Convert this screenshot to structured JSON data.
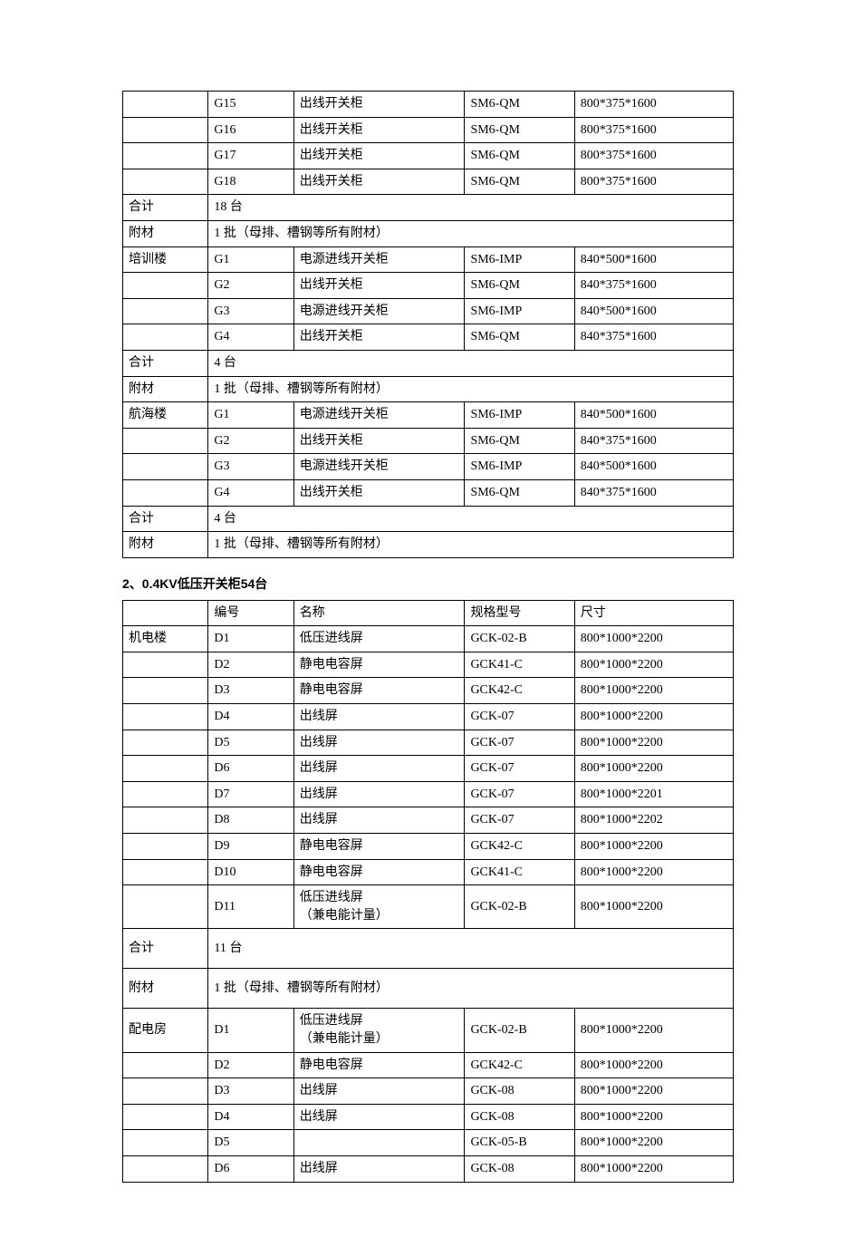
{
  "table1": {
    "rows": [
      {
        "c1": "",
        "c2": "G15",
        "c3": "出线开关柜",
        "c4": "SM6-QM",
        "c5": "800*375*1600"
      },
      {
        "c1": "",
        "c2": "G16",
        "c3": "出线开关柜",
        "c4": "SM6-QM",
        "c5": "800*375*1600"
      },
      {
        "c1": "",
        "c2": "G17",
        "c3": "出线开关柜",
        "c4": "SM6-QM",
        "c5": "800*375*1600"
      },
      {
        "c1": "",
        "c2": "G18",
        "c3": "出线开关柜",
        "c4": "SM6-QM",
        "c5": "800*375*1600"
      },
      {
        "c1": "合计",
        "merge": "18 台"
      },
      {
        "c1": "附材",
        "merge": "1 批（母排、槽钢等所有附材）"
      },
      {
        "c1": "培训楼",
        "c2": "G1",
        "c3": "电源进线开关柜",
        "c4": "SM6-IMP",
        "c5": "840*500*1600"
      },
      {
        "c1": "",
        "c2": "G2",
        "c3": "出线开关柜",
        "c4": "SM6-QM",
        "c5": "840*375*1600"
      },
      {
        "c1": "",
        "c2": "G3",
        "c3": "电源进线开关柜",
        "c4": "SM6-IMP",
        "c5": "840*500*1600"
      },
      {
        "c1": "",
        "c2": "G4",
        "c3": "出线开关柜",
        "c4": "SM6-QM",
        "c5": "840*375*1600"
      },
      {
        "c1": "合计",
        "merge": "4 台"
      },
      {
        "c1": "附材",
        "merge": "1 批（母排、槽钢等所有附材）"
      },
      {
        "c1": "航海楼",
        "c2": "G1",
        "c3": "电源进线开关柜",
        "c4": "SM6-IMP",
        "c5": "840*500*1600"
      },
      {
        "c1": "",
        "c2": "G2",
        "c3": "出线开关柜",
        "c4": "SM6-QM",
        "c5": "840*375*1600"
      },
      {
        "c1": "",
        "c2": "G3",
        "c3": "电源进线开关柜",
        "c4": "SM6-IMP",
        "c5": "840*500*1600"
      },
      {
        "c1": "",
        "c2": "G4",
        "c3": "出线开关柜",
        "c4": "SM6-QM",
        "c5": "840*375*1600"
      },
      {
        "c1": "合计",
        "merge": "4 台"
      },
      {
        "c1": "附材",
        "merge": "1 批（母排、槽钢等所有附材）"
      }
    ]
  },
  "section2_heading": "2、0.4KV低压开关柜54台",
  "table2": {
    "rows": [
      {
        "c1": "",
        "c2": "编号",
        "c3": "名称",
        "c4": "规格型号",
        "c5": "尺寸"
      },
      {
        "c1": "机电楼",
        "c2": "D1",
        "c3": "低压进线屏",
        "c4": "GCK-02-B",
        "c5": "800*1000*2200"
      },
      {
        "c1": "",
        "c2": "D2",
        "c3": "静电电容屏",
        "c4": "GCK41-C",
        "c5": "800*1000*2200"
      },
      {
        "c1": "",
        "c2": "D3",
        "c3": "静电电容屏",
        "c4": "GCK42-C",
        "c5": "800*1000*2200"
      },
      {
        "c1": "",
        "c2": "D4",
        "c3": "出线屏",
        "c4": "GCK-07",
        "c5": "800*1000*2200"
      },
      {
        "c1": "",
        "c2": "D5",
        "c3": "出线屏",
        "c4": "GCK-07",
        "c5": "800*1000*2200"
      },
      {
        "c1": "",
        "c2": "D6",
        "c3": "出线屏",
        "c4": "GCK-07",
        "c5": "800*1000*2200"
      },
      {
        "c1": "",
        "c2": "D7",
        "c3": "出线屏",
        "c4": "GCK-07",
        "c5": "800*1000*2201"
      },
      {
        "c1": "",
        "c2": "D8",
        "c3": "出线屏",
        "c4": "GCK-07",
        "c5": "800*1000*2202"
      },
      {
        "c1": "",
        "c2": "D9",
        "c3": "静电电容屏",
        "c4": "GCK42-C",
        "c5": "800*1000*2200"
      },
      {
        "c1": "",
        "c2": "D10",
        "c3": "静电电容屏",
        "c4": "GCK41-C",
        "c5": "800*1000*2200"
      },
      {
        "c1": "",
        "c2": "D11",
        "c3": "低压进线屏\n（兼电能计量）",
        "c4": "GCK-02-B",
        "c5": "800*1000*2200",
        "tall": true
      },
      {
        "c1": "合计",
        "merge": "11 台",
        "tall": true
      },
      {
        "c1": "附材",
        "merge": "1 批（母排、槽钢等所有附材）",
        "tall": true
      },
      {
        "c1": "配电房",
        "c2": "D1",
        "c3": "低压进线屏\n（兼电能计量）",
        "c4": "GCK-02-B",
        "c5": "800*1000*2200",
        "tall": true
      },
      {
        "c1": "",
        "c2": "D2",
        "c3": "静电电容屏",
        "c4": "GCK42-C",
        "c5": "800*1000*2200"
      },
      {
        "c1": "",
        "c2": "D3",
        "c3": "出线屏",
        "c4": "GCK-08",
        "c5": "800*1000*2200"
      },
      {
        "c1": "",
        "c2": "D4",
        "c3": "出线屏",
        "c4": "GCK-08",
        "c5": "800*1000*2200"
      },
      {
        "c1": "",
        "c2": "D5",
        "c3": "",
        "c4": "GCK-05-B",
        "c5": "800*1000*2200"
      },
      {
        "c1": "",
        "c2": "D6",
        "c3": "出线屏",
        "c4": "GCK-08",
        "c5": "800*1000*2200"
      }
    ]
  }
}
